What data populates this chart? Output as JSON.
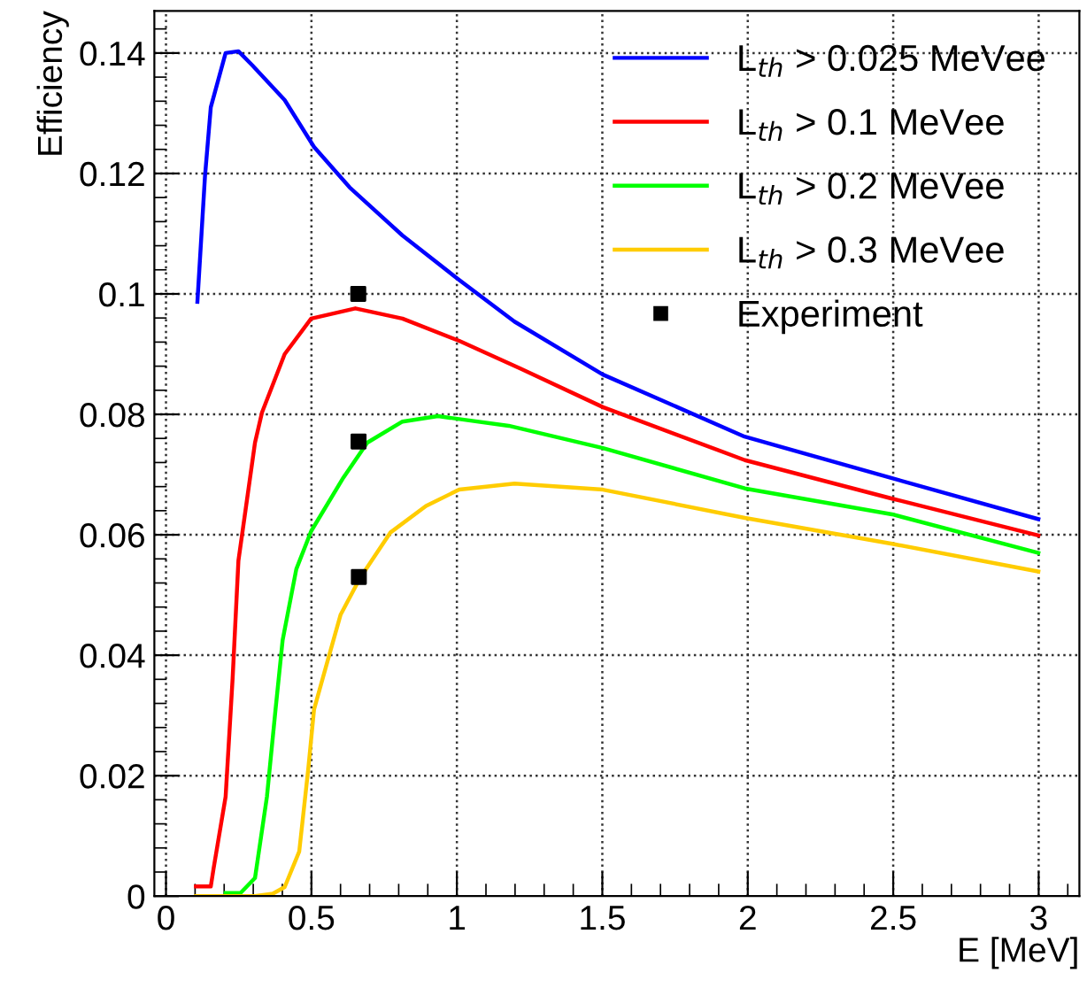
{
  "chart_data": {
    "type": "line",
    "xlabel": "E [MeV]",
    "ylabel": "Efficiency",
    "xlim": [
      -0.04,
      3.14
    ],
    "ylim": [
      0,
      0.147
    ],
    "xticks": [
      0,
      0.5,
      1,
      1.5,
      2,
      2.5,
      3
    ],
    "yticks": [
      0,
      0.02,
      0.04,
      0.06,
      0.08,
      0.1,
      0.12,
      0.14
    ],
    "grid": true,
    "legend": "top right",
    "marker": "none",
    "line_style": "solid",
    "series": [
      {
        "name": "L$_{th}$ > 0.025 MeVee",
        "color": "#0000ff",
        "x": [
          0.108,
          0.134,
          0.154,
          0.205,
          0.249,
          0.296,
          0.408,
          0.509,
          0.631,
          0.813,
          1.008,
          1.198,
          1.502,
          1.989,
          2.496,
          2.999
        ],
        "values": [
          0.0987,
          0.1195,
          0.131,
          0.14,
          0.1403,
          0.138,
          0.1322,
          0.1244,
          0.1177,
          0.1097,
          0.1023,
          0.0954,
          0.0866,
          0.0763,
          0.0694,
          0.0626
        ]
      },
      {
        "name": "L$_{th}$ > 0.1 MeVee",
        "color": "#ff0000",
        "x": [
          0.103,
          0.154,
          0.164,
          0.205,
          0.229,
          0.249,
          0.306,
          0.33,
          0.408,
          0.499,
          0.651,
          0.813,
          1.008,
          1.218,
          1.502,
          1.99,
          2.496,
          2.999
        ],
        "values": [
          0.0016,
          0.0016,
          0.0047,
          0.0165,
          0.0361,
          0.0557,
          0.0753,
          0.0803,
          0.09,
          0.0959,
          0.0976,
          0.0959,
          0.0922,
          0.0876,
          0.0812,
          0.0724,
          0.066,
          0.0599
        ]
      },
      {
        "name": "L$_{th}$ > 0.2 MeVee",
        "color": "#00ff00",
        "x": [
          0.205,
          0.256,
          0.306,
          0.347,
          0.377,
          0.401,
          0.448,
          0.499,
          0.61,
          0.692,
          0.813,
          0.935,
          1.178,
          1.502,
          1.99,
          2.496,
          2.999
        ],
        "values": [
          0.0005,
          0.0005,
          0.003,
          0.0165,
          0.0312,
          0.0425,
          0.0543,
          0.0606,
          0.0695,
          0.0753,
          0.0788,
          0.0797,
          0.0781,
          0.0744,
          0.0677,
          0.0634,
          0.057
        ]
      },
      {
        "name": "L$_{th}$ > 0.3 MeVee",
        "color": "#ffcc00",
        "x": [
          0.103,
          0.306,
          0.367,
          0.408,
          0.458,
          0.489,
          0.509,
          0.554,
          0.6,
          0.667,
          0.772,
          0.894,
          1.008,
          1.198,
          1.502,
          1.99,
          2.496,
          2.999
        ],
        "values": [
          0,
          0,
          0.0004,
          0.0015,
          0.0074,
          0.0211,
          0.031,
          0.0388,
          0.0467,
          0.0528,
          0.0604,
          0.0648,
          0.0675,
          0.0685,
          0.0675,
          0.0628,
          0.0585,
          0.0539
        ]
      },
      {
        "name": "Experiment",
        "type": "scatter",
        "marker": "square",
        "color": "#000000",
        "x": [
          0.661,
          0.662,
          0.663
        ],
        "values": [
          0.1,
          0.0755,
          0.053
        ]
      }
    ]
  }
}
